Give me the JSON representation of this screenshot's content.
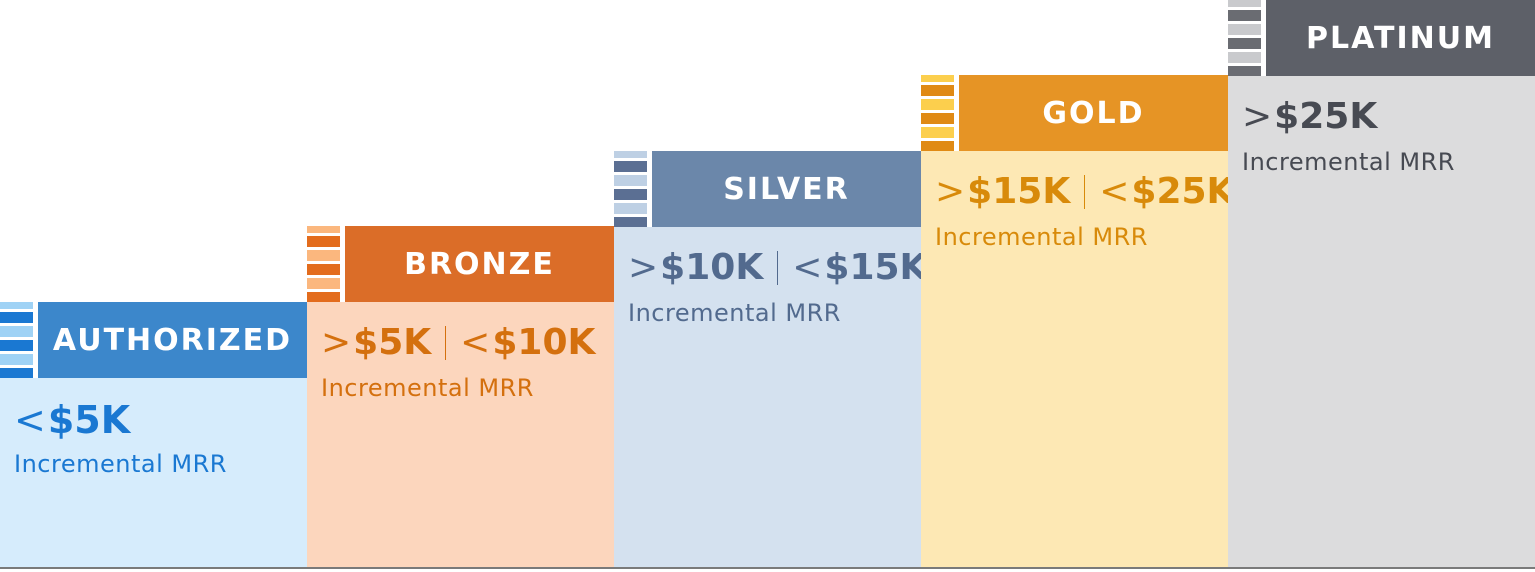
{
  "tiers": [
    {
      "name": "AUTHORIZED",
      "range_low_op": "<",
      "range_low": "$5K",
      "range_high_op": "",
      "range_high": "",
      "description": "Incremental MRR",
      "colors": {
        "header": "#3c87cb",
        "body": "#d6ecfc",
        "text": "#1a78d2",
        "stripes": [
          "#1a78d2",
          "#9fd2f5"
        ]
      }
    },
    {
      "name": "BRONZE",
      "range_low_op": ">",
      "range_low": "$5K",
      "range_high_op": "<",
      "range_high": "$10K",
      "description": "Incremental MRR",
      "colors": {
        "header": "#db6d28",
        "body": "#fcd6bd",
        "text": "#d4700e",
        "stripes": [
          "#e36c1d",
          "#fbb77e"
        ]
      }
    },
    {
      "name": "SILVER",
      "range_low_op": ">",
      "range_low": "$10K",
      "range_high_op": "<",
      "range_high": "$15K",
      "description": "Incremental MRR",
      "colors": {
        "header": "#6b87aa",
        "body": "#d4e1ef",
        "text": "#526a8e",
        "stripes": [
          "#5b6f93",
          "#bed0e4"
        ]
      }
    },
    {
      "name": "GOLD",
      "range_low_op": ">",
      "range_low": "$15K",
      "range_high_op": "<",
      "range_high": "$25K",
      "description": "Incremental MRR",
      "colors": {
        "header": "#e69425",
        "body": "#fde8b4",
        "text": "#d88a0a",
        "stripes": [
          "#e08a14",
          "#fccf4d"
        ]
      }
    },
    {
      "name": "PLATINUM",
      "range_low_op": ">",
      "range_low": "$25K",
      "range_high_op": "",
      "range_high": "",
      "description": "Incremental MRR",
      "colors": {
        "header": "#5d6068",
        "body": "#dcdcdd",
        "text": "#474a52",
        "stripes": [
          "#6a6c72",
          "#c9cacd"
        ]
      }
    }
  ]
}
